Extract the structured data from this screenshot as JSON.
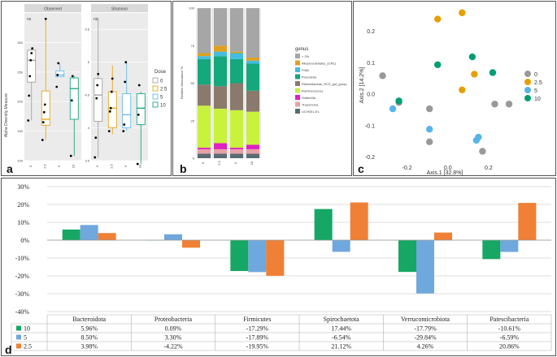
{
  "panel_labels": {
    "a": "a",
    "b": "b",
    "c": "c",
    "d": "d"
  },
  "colors": {
    "dose0": "#999999",
    "dose2_5": "#E69F00",
    "dose5": "#56B4E9",
    "dose10": "#009E73",
    "bar10": "#16a765",
    "bar5": "#6fa8dc",
    "bar2_5": "#ef8035"
  },
  "chart_data": [
    {
      "type": "box",
      "id": "alpha-diversity",
      "ylabel": "Alpha Diversity Measure",
      "categories": [
        "0",
        "2.5",
        "5",
        "10"
      ],
      "legend_title": "Dose",
      "legend_items": [
        "0",
        "2.5",
        "5",
        "10"
      ],
      "facets": [
        {
          "title": "Observed",
          "significance": "ns",
          "ylim": [
            100,
            350
          ],
          "yticks": [
            100,
            150,
            200,
            250,
            300
          ],
          "boxes": [
            {
              "cat": "0",
              "q1": 233,
              "median": 270,
              "q3": 287,
              "min": 168,
              "max": 290,
              "points": [
                168,
                210,
                243,
                270,
                282,
                290
              ]
            },
            {
              "cat": "2.5",
              "q1": 160,
              "median": 170,
              "q3": 218,
              "min": 135,
              "max": 340,
              "points": [
                135,
                165,
                182,
                195,
                340
              ]
            },
            {
              "cat": "5",
              "q1": 242,
              "median": 245,
              "q3": 252,
              "min": 242,
              "max": 265,
              "points": [
                225,
                245,
                265
              ]
            },
            {
              "cat": "10",
              "q1": 170,
              "median": 222,
              "q3": 240,
              "min": 108,
              "max": 243,
              "points": [
                108,
                202,
                243
              ]
            }
          ]
        },
        {
          "title": "Shannon",
          "significance": "ns",
          "ylim": [
            3.5,
            5.75
          ],
          "yticks": [
            3.5,
            4.0,
            4.5,
            5.0,
            5.5
          ],
          "boxes": [
            {
              "cat": "0",
              "q1": 4.1,
              "median": 4.5,
              "q3": 4.75,
              "min": 3.55,
              "max": 5.68,
              "points": [
                3.55,
                3.85,
                4.45,
                4.65,
                4.82
              ]
            },
            {
              "cat": "2.5",
              "q1": 4.0,
              "median": 4.3,
              "q3": 4.55,
              "min": 3.9,
              "max": 4.95,
              "points": [
                3.95,
                4.25,
                4.3,
                4.55,
                4.75
              ]
            },
            {
              "cat": "5",
              "q1": 4.0,
              "median": 4.2,
              "q3": 4.52,
              "min": 3.95,
              "max": 5.0,
              "points": [
                3.95,
                4.05,
                4.7,
                5.0
              ]
            },
            {
              "cat": "10",
              "q1": 4.05,
              "median": 4.3,
              "q3": 4.52,
              "min": 3.45,
              "max": 4.55,
              "points": [
                3.45,
                4.2,
                4.65
              ]
            }
          ]
        }
      ]
    },
    {
      "type": "stacked-bar",
      "id": "relative-abundance",
      "ylabel": "Relative Abundance %",
      "categories": [
        "0",
        "2.5",
        "5",
        "10"
      ],
      "yticks": [
        0,
        25,
        50,
        75,
        100
      ],
      "legend_title": "genus",
      "series": [
        {
          "name": "UCH001-E1",
          "color": "#5b6b73",
          "values": [
            3,
            3,
            3,
            3
          ]
        },
        {
          "name": "Treponema",
          "color": "#e8a0a8",
          "values": [
            3,
            3,
            3,
            3
          ]
        },
        {
          "name": "Sutterella",
          "color": "#e020c0",
          "values": [
            1,
            4,
            1,
            3
          ]
        },
        {
          "name": "Ruminococcus",
          "color": "#c9f23c",
          "values": [
            28,
            23,
            25,
            22
          ]
        },
        {
          "name": "Rikenellaceae_RC9_gut_group",
          "color": "#8a7a6c",
          "values": [
            14,
            15,
            18,
            14
          ]
        },
        {
          "name": "Prevotella",
          "color": "#14a87c",
          "values": [
            17,
            20,
            16,
            18
          ]
        },
        {
          "name": "F082",
          "color": "#44bde0",
          "values": [
            2,
            3,
            4,
            2
          ]
        },
        {
          "name": "Alloprevotellales_(CR1)",
          "color": "#e0a020",
          "values": [
            2,
            4,
            1,
            2
          ]
        },
        {
          "name": "< 2%",
          "color": "#a6a6a6",
          "values": [
            30,
            25,
            29,
            33
          ]
        }
      ]
    },
    {
      "type": "scatter",
      "id": "pcoa",
      "xlabel": "Axis.1   [32.8%]",
      "ylabel": "Axis.2   [14.2%]",
      "xlim": [
        -0.35,
        0.32
      ],
      "ylim": [
        -0.22,
        0.28
      ],
      "xticks": [
        -0.2,
        0.0,
        0.2
      ],
      "yticks": [
        -0.2,
        -0.1,
        0.0,
        0.1,
        0.2
      ],
      "legend_items": [
        "0",
        "2.5",
        "5",
        "10"
      ],
      "series": [
        {
          "name": "0",
          "color": "#999999",
          "points": [
            [
              -0.32,
              0.06
            ],
            [
              -0.24,
              -0.025
            ],
            [
              -0.09,
              -0.045
            ],
            [
              -0.09,
              -0.15
            ],
            [
              0.17,
              -0.18
            ],
            [
              0.23,
              -0.03
            ],
            [
              0.3,
              -0.03
            ]
          ]
        },
        {
          "name": "2.5",
          "color": "#E69F00",
          "points": [
            [
              -0.05,
              0.24
            ],
            [
              0.07,
              0.26
            ],
            [
              0.13,
              0.065
            ],
            [
              0.07,
              0.015
            ]
          ]
        },
        {
          "name": "5",
          "color": "#56B4E9",
          "points": [
            [
              -0.27,
              -0.045
            ],
            [
              -0.09,
              -0.11
            ],
            [
              0.14,
              -0.145
            ],
            [
              0.15,
              -0.135
            ]
          ]
        },
        {
          "name": "10",
          "color": "#009E73",
          "points": [
            [
              -0.24,
              -0.02
            ],
            [
              -0.05,
              0.095
            ],
            [
              0.12,
              0.12
            ],
            [
              0.22,
              0.07
            ]
          ]
        }
      ]
    },
    {
      "type": "bar",
      "id": "percent-change",
      "ylim": [
        -40,
        30
      ],
      "yticks": [
        "30%",
        "20%",
        "10%",
        "0%",
        "-10%",
        "-20%",
        "-30%",
        "-40%"
      ],
      "ytick_values": [
        30,
        20,
        10,
        0,
        -10,
        -20,
        -30,
        -40
      ],
      "categories": [
        "Bacteroidota",
        "Proteobacteria",
        "Firmicutes",
        "Spirochaetota",
        "Verrucomicrobiota",
        "Patescibacteria"
      ],
      "series": [
        {
          "name": "10",
          "values": [
            5.96,
            0.09,
            -17.29,
            17.44,
            -17.79,
            -10.61
          ],
          "labels": [
            "5.96%",
            "0.09%",
            "-17.29%",
            "17.44%",
            "-17.79%",
            "-10.61%"
          ]
        },
        {
          "name": "5",
          "values": [
            8.5,
            3.3,
            -17.89,
            -6.54,
            -29.84,
            -6.59
          ],
          "labels": [
            "8.50%",
            "3.30%",
            "-17.89%",
            "-6.54%",
            "-29.84%",
            "-6.59%"
          ]
        },
        {
          "name": "2.5",
          "values": [
            3.98,
            -4.22,
            -19.95,
            21.12,
            4.26,
            20.86
          ],
          "labels": [
            "3.98%",
            "-4.22%",
            "-19.95%",
            "21.12%",
            "4.26%",
            "20.86%"
          ]
        }
      ]
    }
  ]
}
